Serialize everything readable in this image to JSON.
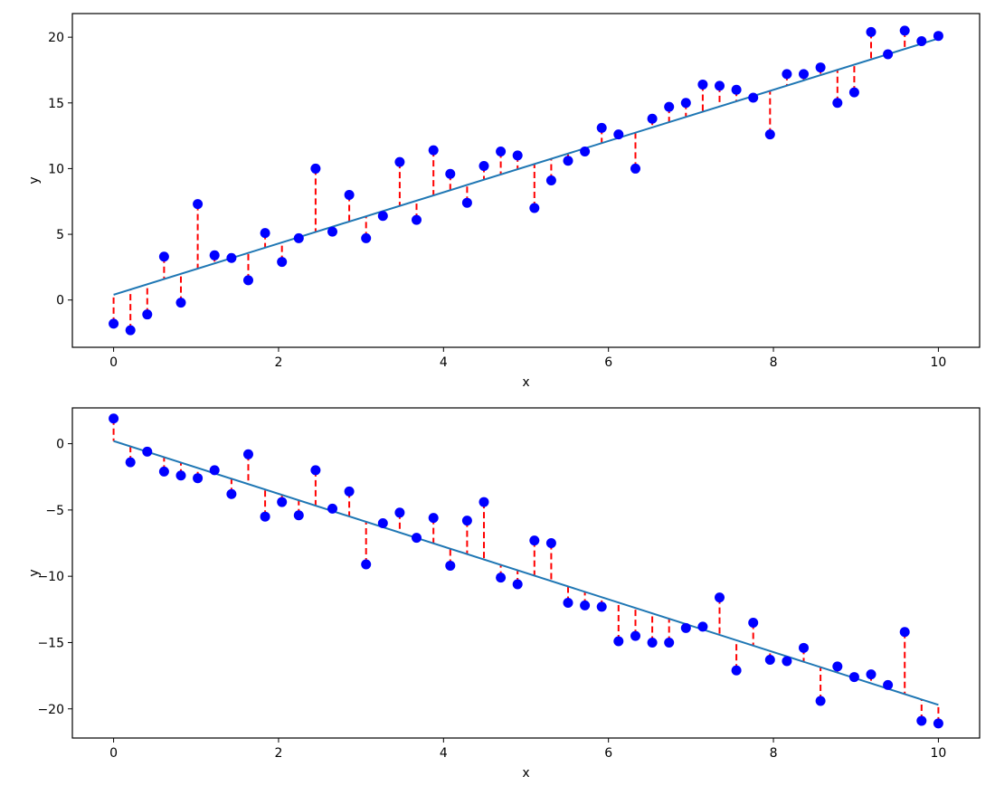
{
  "colors": {
    "points": "#0000ff",
    "residuals": "#ff0000",
    "fit": "#1f77b4",
    "axes": "#000000"
  },
  "chart_data": [
    {
      "type": "scatter",
      "title": "",
      "xlabel": "x",
      "ylabel": "y",
      "xlim": [
        -0.5,
        10.5
      ],
      "ylim": [
        -3.6,
        21.8
      ],
      "xticks": [
        0,
        2,
        4,
        6,
        8,
        10
      ],
      "yticks": [
        0,
        5,
        10,
        15,
        20
      ],
      "grid": false,
      "legend": "none",
      "fit_line": {
        "x": [
          0,
          10
        ],
        "y": [
          0.4,
          19.9
        ]
      },
      "points": {
        "x": [
          0.0,
          0.204,
          0.408,
          0.612,
          0.816,
          1.02,
          1.224,
          1.429,
          1.633,
          1.837,
          2.041,
          2.245,
          2.449,
          2.653,
          2.857,
          3.061,
          3.265,
          3.469,
          3.673,
          3.878,
          4.082,
          4.286,
          4.49,
          4.694,
          4.898,
          5.102,
          5.306,
          5.51,
          5.714,
          5.918,
          6.122,
          6.327,
          6.531,
          6.735,
          6.939,
          7.143,
          7.347,
          7.551,
          7.755,
          7.959,
          8.163,
          8.367,
          8.571,
          8.776,
          8.98,
          9.184,
          9.388,
          9.592,
          9.796,
          10.0
        ],
        "y": [
          -1.8,
          -2.3,
          -1.1,
          3.3,
          -0.2,
          7.3,
          3.4,
          3.2,
          1.5,
          5.1,
          2.9,
          4.7,
          10.0,
          5.2,
          8.0,
          4.7,
          6.4,
          10.5,
          6.1,
          11.4,
          9.6,
          7.4,
          10.2,
          11.3,
          11.0,
          7.0,
          9.1,
          10.6,
          11.3,
          13.1,
          12.6,
          10.0,
          13.8,
          14.7,
          15.0,
          16.4,
          16.3,
          16.0,
          15.4,
          12.6,
          17.2,
          17.2,
          17.7,
          15.0,
          15.8,
          20.4,
          18.7,
          20.5,
          19.7,
          20.1
        ]
      }
    },
    {
      "type": "scatter",
      "title": "",
      "xlabel": "x",
      "ylabel": "y",
      "xlim": [
        -0.5,
        10.5
      ],
      "ylim": [
        -22.2,
        2.7
      ],
      "xticks": [
        0,
        2,
        4,
        6,
        8,
        10
      ],
      "yticks": [
        0,
        -5,
        -10,
        -15,
        -20
      ],
      "grid": false,
      "legend": "none",
      "fit_line": {
        "x": [
          0,
          10
        ],
        "y": [
          0.2,
          -19.7
        ]
      },
      "points": {
        "x": [
          0.0,
          0.204,
          0.408,
          0.612,
          0.816,
          1.02,
          1.224,
          1.429,
          1.633,
          1.837,
          2.041,
          2.245,
          2.449,
          2.653,
          2.857,
          3.061,
          3.265,
          3.469,
          3.673,
          3.878,
          4.082,
          4.286,
          4.49,
          4.694,
          4.898,
          5.102,
          5.306,
          5.51,
          5.714,
          5.918,
          6.122,
          6.327,
          6.531,
          6.735,
          6.939,
          7.143,
          7.347,
          7.551,
          7.755,
          7.959,
          8.163,
          8.367,
          8.571,
          8.776,
          8.98,
          9.184,
          9.388,
          9.592,
          9.796,
          10.0
        ],
        "y": [
          1.9,
          -1.4,
          -0.6,
          -2.1,
          -2.4,
          -2.6,
          -2.0,
          -3.8,
          -0.8,
          -5.5,
          -4.4,
          -5.4,
          -2.0,
          -4.9,
          -3.6,
          -9.1,
          -6.0,
          -5.2,
          -7.1,
          -5.6,
          -9.2,
          -5.8,
          -4.4,
          -10.1,
          -10.6,
          -7.3,
          -7.5,
          -12.0,
          -12.2,
          -12.3,
          -14.9,
          -14.5,
          -15.0,
          -15.0,
          -13.9,
          -13.8,
          -11.6,
          -17.1,
          -13.5,
          -16.3,
          -16.4,
          -15.4,
          -19.4,
          -16.8,
          -17.6,
          -17.4,
          -18.2,
          -14.2,
          -20.9,
          -21.1
        ]
      }
    }
  ]
}
